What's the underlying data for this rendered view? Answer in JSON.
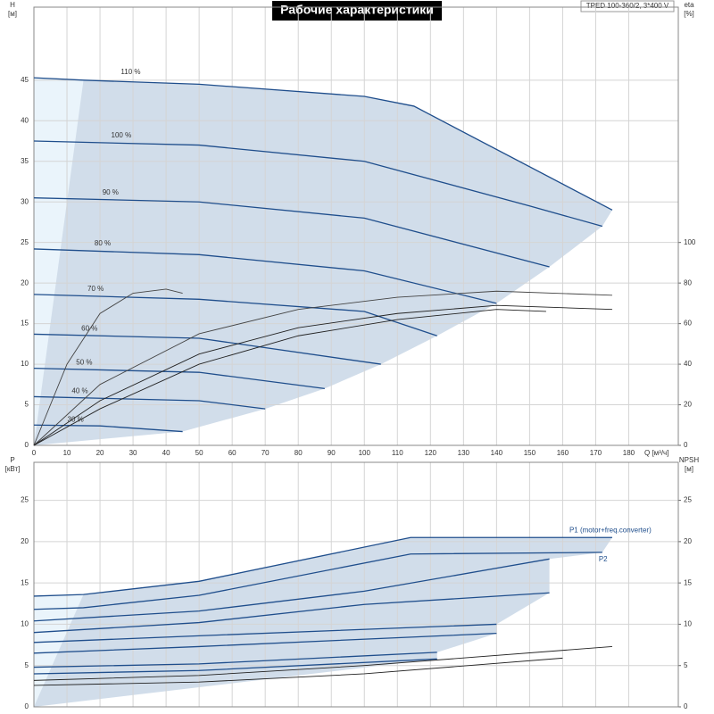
{
  "chart_data": [
    {
      "type": "line",
      "title": "Рабочие характеристики",
      "annotation": "TPED 100-360/2, 3*400 V",
      "y_label": "H",
      "y_unit": "[м]",
      "y2_label": "eta",
      "y2_unit": "[%]",
      "x_label": "Q [м³/ч]",
      "xlim": [
        0,
        195
      ],
      "xticks": [
        0,
        10,
        20,
        30,
        40,
        50,
        60,
        70,
        80,
        90,
        100,
        110,
        120,
        130,
        140,
        150,
        160,
        170,
        180
      ],
      "ylim": [
        0,
        54
      ],
      "yticks": [
        0,
        5,
        10,
        15,
        20,
        25,
        30,
        35,
        40,
        45
      ],
      "y2lim": [
        0,
        216
      ],
      "y2ticks": [
        0,
        20,
        40,
        60,
        80,
        100
      ],
      "grid": true,
      "region_color": "#c9d7e6",
      "series": [
        {
          "name": "110 %",
          "color": "#1f4e8c",
          "x": [
            0,
            15,
            50,
            100,
            115,
            175
          ],
          "values": [
            45.3,
            45,
            44.5,
            43,
            41.8,
            29
          ]
        },
        {
          "name": "100 %",
          "color": "#1f4e8c",
          "x": [
            0,
            50,
            100,
            150,
            172
          ],
          "values": [
            37.5,
            37,
            35,
            29.5,
            27
          ]
        },
        {
          "name": "90 %",
          "color": "#1f4e8c",
          "x": [
            0,
            50,
            100,
            156
          ],
          "values": [
            30.5,
            30,
            28,
            22
          ]
        },
        {
          "name": "80 %",
          "color": "#1f4e8c",
          "x": [
            0,
            50,
            100,
            140
          ],
          "values": [
            24.2,
            23.5,
            21.5,
            17.5
          ]
        },
        {
          "name": "70 %",
          "color": "#1f4e8c",
          "x": [
            0,
            50,
            100,
            122
          ],
          "values": [
            18.6,
            18,
            16.5,
            13.5
          ]
        },
        {
          "name": "60 %",
          "color": "#1f4e8c",
          "x": [
            0,
            50,
            105
          ],
          "values": [
            13.7,
            13.2,
            10
          ]
        },
        {
          "name": "50 %",
          "color": "#1f4e8c",
          "x": [
            0,
            50,
            88
          ],
          "values": [
            9.5,
            9,
            7
          ]
        },
        {
          "name": "40 %",
          "color": "#1f4e8c",
          "x": [
            0,
            50,
            70
          ],
          "values": [
            6,
            5.5,
            4.5
          ]
        },
        {
          "name": "30 %",
          "color": "#1f4e8c",
          "x": [
            0,
            20,
            45
          ],
          "values": [
            2.5,
            2.4,
            1.7
          ]
        },
        {
          "color": "#444",
          "axis": "y2",
          "x": [
            0,
            10,
            20,
            30,
            40,
            45
          ],
          "values": [
            0,
            40,
            65,
            75,
            77,
            75
          ]
        },
        {
          "color": "#444",
          "axis": "y2",
          "x": [
            0,
            20,
            50,
            80,
            110,
            140,
            175
          ],
          "values": [
            0,
            30,
            55,
            67,
            73,
            76,
            74
          ]
        },
        {
          "color": "#222",
          "axis": "y2",
          "x": [
            0,
            20,
            50,
            80,
            110,
            140,
            175
          ],
          "values": [
            0,
            22,
            45,
            58,
            65,
            69,
            67
          ]
        },
        {
          "color": "#222",
          "axis": "y2",
          "x": [
            0,
            20,
            50,
            80,
            110,
            140,
            155
          ],
          "values": [
            0,
            18,
            40,
            54,
            62,
            67,
            66
          ]
        }
      ]
    },
    {
      "type": "line",
      "y_label": "P",
      "y_unit": "[кВт]",
      "y2_label": "NPSH",
      "y2_unit": "[м]",
      "xlim": [
        0,
        195
      ],
      "ylim": [
        0,
        29.6
      ],
      "yticks": [
        0,
        5,
        10,
        15,
        20,
        25
      ],
      "y2lim": [
        0,
        29.6
      ],
      "y2ticks": [
        0,
        5,
        10,
        15,
        20,
        25
      ],
      "grid": true,
      "region_color": "#c9d7e6",
      "series": [
        {
          "name": "P1 (motor+freq.converter)",
          "color": "#1f4e8c",
          "x": [
            0,
            15,
            50,
            114,
            175
          ],
          "values": [
            13.4,
            13.6,
            15.2,
            20.5,
            20.5
          ]
        },
        {
          "name": "P2",
          "color": "#1f4e8c",
          "x": [
            0,
            15,
            50,
            114,
            172
          ],
          "values": [
            11.8,
            12,
            13.5,
            18.5,
            18.7
          ]
        },
        {
          "color": "#1f4e8c",
          "x": [
            0,
            50,
            100,
            156
          ],
          "values": [
            10.4,
            11.6,
            14,
            17.9
          ]
        },
        {
          "color": "#1f4e8c",
          "x": [
            0,
            50,
            100,
            156
          ],
          "values": [
            9,
            10.2,
            12.4,
            13.8
          ]
        },
        {
          "color": "#1f4e8c",
          "x": [
            0,
            50,
            140
          ],
          "values": [
            7.8,
            8.6,
            10
          ]
        },
        {
          "color": "#1f4e8c",
          "x": [
            0,
            50,
            140
          ],
          "values": [
            6.5,
            7.3,
            8.9
          ]
        },
        {
          "color": "#1f4e8c",
          "x": [
            0,
            50,
            122
          ],
          "values": [
            4.8,
            5.2,
            6.6
          ]
        },
        {
          "color": "#1f4e8c",
          "x": [
            0,
            50,
            122
          ],
          "values": [
            4,
            4.4,
            5.8
          ]
        },
        {
          "color": "#222",
          "axis": "y2",
          "x": [
            0,
            50,
            100,
            175
          ],
          "values": [
            3.2,
            3.8,
            5,
            7.3
          ]
        },
        {
          "color": "#222",
          "axis": "y2",
          "x": [
            0,
            50,
            100,
            160
          ],
          "values": [
            2.6,
            3,
            4,
            5.9
          ]
        }
      ]
    }
  ]
}
